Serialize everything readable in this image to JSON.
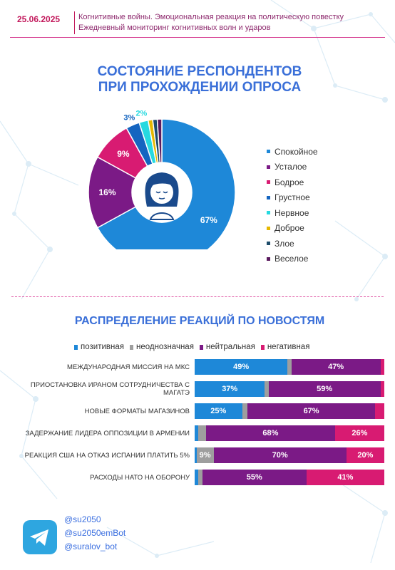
{
  "header": {
    "date": "25.06.2025",
    "subtitle_line1": "Когнитивные войны. Эмоциональная реакция на политическую повестку",
    "subtitle_line2": "Ежедневный мониторинг когнитивных волн и ударов"
  },
  "colors": {
    "accent": "#c2185b",
    "title": "#3a6fd8",
    "Спокойное": "#1e88d8",
    "Усталое": "#7b1a86",
    "Бодрое": "#d81b72",
    "Грустное": "#1565c0",
    "Нервное": "#26d9e0",
    "Доброе": "#e6b800",
    "Злое": "#1e4d6b",
    "Веселое": "#5a1a5e",
    "позитивная": "#1e88d8",
    "неоднозначная": "#9e9e9e",
    "нейтральная": "#7b1a86",
    "негативная": "#d81b72"
  },
  "chart_data": [
    {
      "type": "pie",
      "title": "СОСТОЯНИЕ РЕСПОНДЕНТОВ\nПРИ ПРОХОЖДЕНИИ ОПРОСА",
      "title_line1": "СОСТОЯНИЕ РЕСПОНДЕНТОВ",
      "title_line2": "ПРИ ПРОХОЖДЕНИИ ОПРОСА",
      "legend_position": "right",
      "categories": [
        "Спокойное",
        "Усталое",
        "Бодрое",
        "Грустное",
        "Нервное",
        "Доброе",
        "Злое",
        "Веселое"
      ],
      "values": [
        67,
        16,
        9,
        3,
        2,
        1,
        1,
        1
      ],
      "data_labels": [
        "67%",
        "16%",
        "9%",
        "3%",
        "2%",
        "",
        "",
        ""
      ]
    },
    {
      "type": "bar",
      "orientation": "horizontal",
      "stacked": "percent",
      "title": "РАСПРЕДЕЛЕНИЕ РЕАКЦИЙ ПО НОВОСТЯМ",
      "legend_position": "top",
      "categories": [
        "МЕЖДУНАРОДНАЯ МИССИЯ НА МКС",
        "ПРИОСТАНОВКА ИРАНОМ СОТРУДНИЧЕСТВА С МАГАТЭ",
        "НОВЫЕ ФОРМАТЫ МАГАЗИНОВ",
        "ЗАДЕРЖАНИЕ ЛИДЕРА ОППОЗИЦИИ В АРМЕНИИ",
        "РЕАКЦИЯ США НА ОТКАЗ ИСПАНИИ ПЛАТИТЬ 5%",
        "РАСХОДЫ НАТО НА ОБОРОНУ"
      ],
      "series": [
        {
          "name": "позитивная",
          "values": [
            49,
            37,
            25,
            2,
            1,
            2
          ],
          "labels": [
            "49%",
            "37%",
            "25%",
            "",
            "",
            ""
          ]
        },
        {
          "name": "неоднозначная",
          "values": [
            2,
            2,
            3,
            4,
            9,
            2
          ],
          "labels": [
            "",
            "",
            "",
            "",
            "9%",
            ""
          ]
        },
        {
          "name": "нейтральная",
          "values": [
            47,
            59,
            67,
            68,
            70,
            55
          ],
          "labels": [
            "47%",
            "59%",
            "67%",
            "68%",
            "70%",
            "55%"
          ]
        },
        {
          "name": "негативная",
          "values": [
            2,
            2,
            5,
            26,
            20,
            41
          ],
          "labels": [
            "",
            "",
            "",
            "26%",
            "20%",
            "41%"
          ]
        }
      ]
    }
  ],
  "footer": {
    "icon": "telegram-icon",
    "handles": [
      "@su2050",
      "@su2050emBot",
      "@suralov_bot"
    ]
  }
}
